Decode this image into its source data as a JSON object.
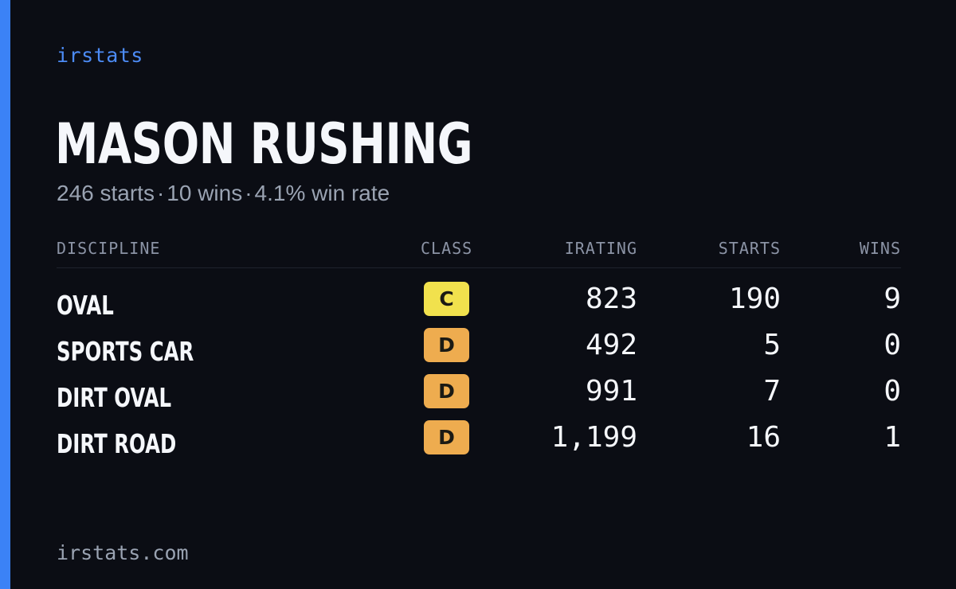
{
  "brand": "irstats",
  "player": {
    "name": "MASON RUSHING",
    "starts_text": "246 starts",
    "wins_text": "10 wins",
    "win_rate_text": "4.1% win rate",
    "separator": "·"
  },
  "table": {
    "headers": {
      "discipline": "DISCIPLINE",
      "class": "CLASS",
      "irating": "IRATING",
      "starts": "STARTS",
      "wins": "WINS"
    },
    "rows": [
      {
        "discipline": "OVAL",
        "class": "C",
        "class_color": "#f1e14d",
        "irating": "823",
        "starts": "190",
        "wins": "9"
      },
      {
        "discipline": "SPORTS CAR",
        "class": "D",
        "class_color": "#eeac4f",
        "irating": "492",
        "starts": "5",
        "wins": "0"
      },
      {
        "discipline": "DIRT OVAL",
        "class": "D",
        "class_color": "#eeac4f",
        "irating": "991",
        "starts": "7",
        "wins": "0"
      },
      {
        "discipline": "DIRT ROAD",
        "class": "D",
        "class_color": "#eeac4f",
        "irating": "1,199",
        "starts": "16",
        "wins": "1"
      }
    ]
  },
  "footer": "irstats.com",
  "colors": {
    "background": "#0b0d14",
    "accent": "#3b82f6",
    "brand_text": "#4c8bf5"
  }
}
